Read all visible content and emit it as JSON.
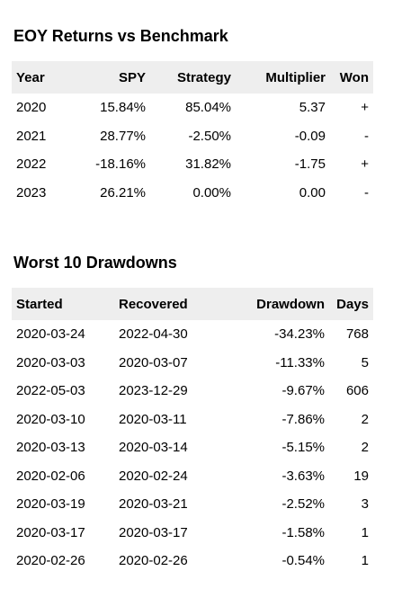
{
  "eoy": {
    "title": "EOY Returns vs Benchmark",
    "headers": [
      "Year",
      "SPY",
      "Strategy",
      "Multiplier",
      "Won"
    ],
    "rows": [
      [
        "2020",
        "15.84%",
        "85.04%",
        "5.37",
        "+"
      ],
      [
        "2021",
        "28.77%",
        "-2.50%",
        "-0.09",
        "-"
      ],
      [
        "2022",
        "-18.16%",
        "31.82%",
        "-1.75",
        "+"
      ],
      [
        "2023",
        "26.21%",
        "0.00%",
        "0.00",
        "-"
      ]
    ]
  },
  "drawdowns": {
    "title": "Worst 10 Drawdowns",
    "headers": [
      "Started",
      "Recovered",
      "Drawdown",
      "Days"
    ],
    "rows": [
      [
        "2020-03-24",
        "2022-04-30",
        "-34.23%",
        "768"
      ],
      [
        "2020-03-03",
        "2020-03-07",
        "-11.33%",
        "5"
      ],
      [
        "2022-05-03",
        "2023-12-29",
        "-9.67%",
        "606"
      ],
      [
        "2020-03-10",
        "2020-03-11",
        "-7.86%",
        "2"
      ],
      [
        "2020-03-13",
        "2020-03-14",
        "-5.15%",
        "2"
      ],
      [
        "2020-02-06",
        "2020-02-24",
        "-3.63%",
        "19"
      ],
      [
        "2020-03-19",
        "2020-03-21",
        "-2.52%",
        "3"
      ],
      [
        "2020-03-17",
        "2020-03-17",
        "-1.58%",
        "1"
      ],
      [
        "2020-02-26",
        "2020-02-26",
        "-0.54%",
        "1"
      ]
    ]
  }
}
